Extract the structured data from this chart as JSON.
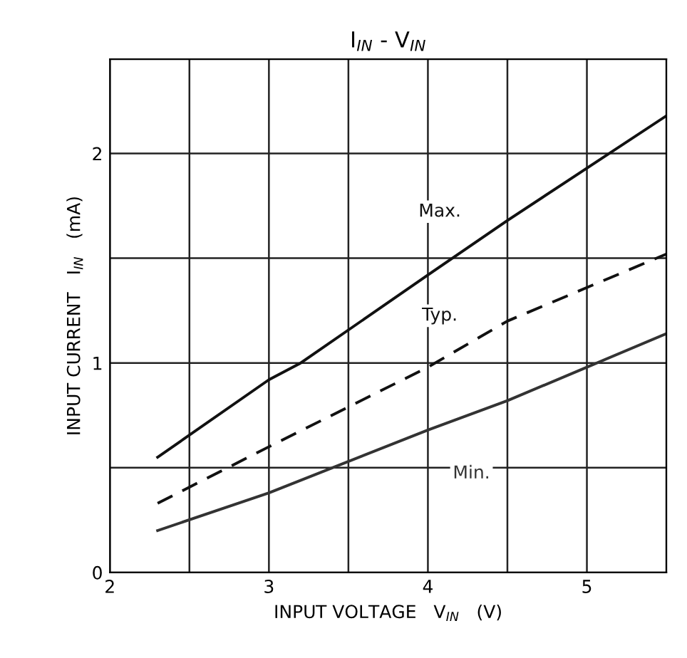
{
  "chart_data": {
    "type": "line",
    "title": "I$_{IN}$ - V$_{IN}$",
    "xlabel": "INPUT VOLTAGE   V$_{IN}$   (V)",
    "ylabel": "INPUT CURRENT   I$_{IN}$   (mA)",
    "series": [
      {
        "name": "Max.",
        "color": "#111111",
        "line_style": "solid",
        "x": [
          2.3,
          3.0,
          3.2,
          4.0,
          4.5,
          5.0,
          5.5
        ],
        "values": [
          0.55,
          0.92,
          1.0,
          1.42,
          1.68,
          1.93,
          2.18
        ]
      },
      {
        "name": "Typ.",
        "color": "#111111",
        "line_style": "dashed",
        "x": [
          2.3,
          3.0,
          4.0,
          4.5,
          5.0,
          5.5
        ],
        "values": [
          0.33,
          0.6,
          0.98,
          1.2,
          1.36,
          1.52
        ]
      },
      {
        "name": "Min.",
        "color": "#333333",
        "line_style": "solid",
        "x": [
          2.3,
          3.0,
          4.0,
          4.5,
          5.0,
          5.5
        ],
        "values": [
          0.2,
          0.38,
          0.68,
          0.82,
          0.98,
          1.14
        ]
      }
    ],
    "xlim": [
      2,
      5.5
    ],
    "ylim": [
      0,
      2.45
    ],
    "xticks": [
      2,
      {
        "value": 2.5,
        "label": null
      },
      3,
      {
        "value": 3.5,
        "label": null
      },
      4,
      {
        "value": 4.5,
        "label": null
      },
      5,
      {
        "value": 5.5,
        "label": null
      }
    ],
    "yticks": [
      0,
      {
        "value": 0.5,
        "label": null
      },
      1,
      {
        "value": 1.5,
        "label": null
      },
      2
    ],
    "grid": true,
    "legend": false,
    "marker": "none"
  }
}
